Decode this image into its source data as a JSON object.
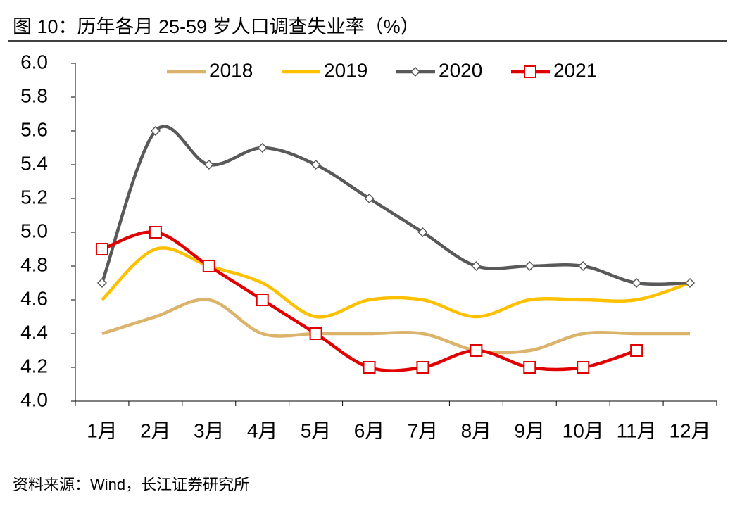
{
  "chart_data": {
    "type": "line",
    "title": "图 10：历年各月 25-59 岁人口调查失业率（%）",
    "source": "资料来源：Wind，长江证券研究所",
    "categories": [
      "1月",
      "2月",
      "3月",
      "4月",
      "5月",
      "6月",
      "7月",
      "8月",
      "9月",
      "10月",
      "11月",
      "12月"
    ],
    "series": [
      {
        "name": "2018",
        "color": "#dbb36a",
        "marker": "none",
        "values": [
          4.4,
          4.5,
          4.6,
          4.4,
          4.4,
          4.4,
          4.4,
          4.3,
          4.3,
          4.4,
          4.4,
          4.4
        ]
      },
      {
        "name": "2019",
        "color": "#ffc000",
        "marker": "none",
        "values": [
          4.6,
          4.9,
          4.8,
          4.7,
          4.5,
          4.6,
          4.6,
          4.5,
          4.6,
          4.6,
          4.6,
          4.7
        ]
      },
      {
        "name": "2020",
        "color": "#595959",
        "marker": "diamond",
        "values": [
          4.7,
          5.6,
          5.4,
          5.5,
          5.4,
          5.2,
          5.0,
          4.8,
          4.8,
          4.8,
          4.7,
          4.7
        ]
      },
      {
        "name": "2021",
        "color": "#e00000",
        "marker": "square",
        "values": [
          4.9,
          5.0,
          4.8,
          4.6,
          4.4,
          4.2,
          4.2,
          4.3,
          4.2,
          4.2,
          4.3,
          null
        ]
      }
    ],
    "ylim": [
      4.0,
      6.0
    ],
    "yticks": [
      {
        "value": 4,
        "label": "4.0"
      },
      4.2,
      4.4,
      4.6,
      4.8,
      {
        "value": 5,
        "label": "5.0"
      },
      5.2,
      5.4,
      5.6,
      5.8,
      {
        "value": 6,
        "label": "6.0"
      }
    ],
    "smooth": true,
    "grid": false,
    "legend": "top"
  }
}
